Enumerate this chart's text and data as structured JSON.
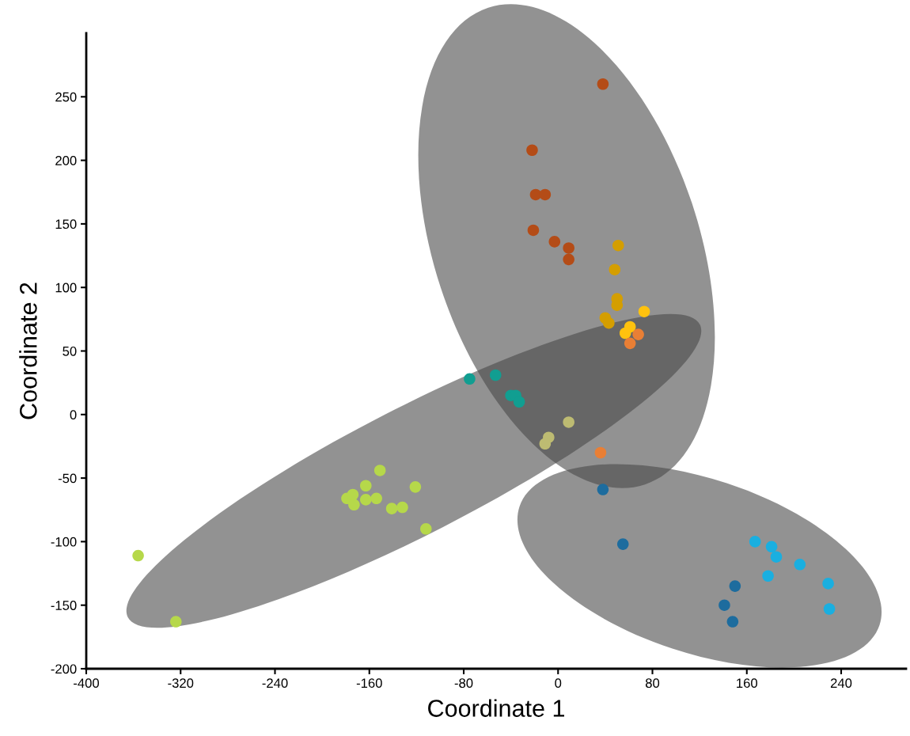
{
  "chart_data": {
    "type": "scatter",
    "xlabel": "Coordinate 1",
    "ylabel": "Coordinate 2",
    "xlim": [
      -400,
      295
    ],
    "ylim": [
      -200,
      300
    ],
    "xticks": [
      -400,
      -320,
      -240,
      -160,
      -80,
      0,
      80,
      160,
      240
    ],
    "yticks": [
      -200,
      -150,
      -100,
      -50,
      0,
      50,
      100,
      150,
      200,
      250
    ],
    "grid": false,
    "legend": false,
    "marker": "circle",
    "series": [
      {
        "color": "#b44c17",
        "x": [
          38,
          -22,
          -19,
          -11,
          -21,
          -3,
          9,
          9
        ],
        "values": [
          260,
          208,
          173,
          173,
          145,
          136,
          131,
          122
        ]
      },
      {
        "color": "#d49e00",
        "x": [
          51,
          48,
          50,
          50,
          40,
          43
        ],
        "values": [
          133,
          114,
          91,
          86,
          76,
          72
        ]
      },
      {
        "color": "#ffc20e",
        "x": [
          73,
          61,
          57
        ],
        "values": [
          81,
          69,
          64
        ]
      },
      {
        "color": "#e97f35",
        "x": [
          68,
          61,
          36
        ],
        "values": [
          63,
          56,
          -30
        ]
      },
      {
        "color": "#119e91",
        "x": [
          -75,
          -53,
          -40,
          -36,
          -33
        ],
        "values": [
          28,
          31,
          15,
          15,
          10
        ]
      },
      {
        "color": "#bdbb72",
        "x": [
          9,
          -8,
          -11
        ],
        "values": [
          -6,
          -18,
          -23
        ]
      },
      {
        "color": "#b6d84a",
        "x": [
          -356,
          -324,
          -179,
          -174,
          -173,
          -163,
          -163,
          -154,
          -151,
          -141,
          -132,
          -121,
          -112
        ],
        "values": [
          -111,
          -163,
          -66,
          -63,
          -71,
          -56,
          -67,
          -66,
          -44,
          -74,
          -73,
          -57,
          -90
        ]
      },
      {
        "color": "#1d6c9e",
        "x": [
          38,
          55,
          150,
          141,
          148
        ],
        "values": [
          -59,
          -102,
          -135,
          -150,
          -163
        ]
      },
      {
        "color": "#1aafe0",
        "x": [
          167,
          181,
          185,
          178,
          205,
          229,
          230
        ],
        "values": [
          -100,
          -104,
          -112,
          -127,
          -118,
          -133,
          -153
        ]
      }
    ]
  }
}
